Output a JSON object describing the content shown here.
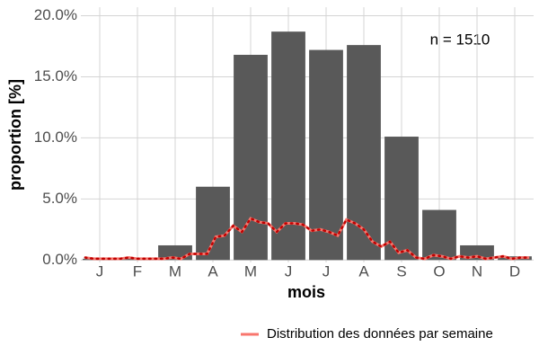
{
  "chart_data": {
    "type": "bar",
    "x_label": "mois",
    "y_label": "proportion [%]",
    "annotation": "n = 1510",
    "categories": [
      "J",
      "F",
      "M",
      "A",
      "M",
      "J",
      "J",
      "A",
      "S",
      "O",
      "N",
      "D"
    ],
    "values": [
      0.1,
      0.2,
      1.2,
      6.0,
      16.8,
      18.7,
      17.2,
      17.6,
      10.1,
      4.1,
      1.2,
      0.3
    ],
    "color": "#595959",
    "ylim": [
      -0.2,
      20.7
    ],
    "yticks": [
      {
        "value": 0,
        "label": "0.0%"
      },
      {
        "value": 5,
        "label": "5.0%"
      },
      {
        "value": 10,
        "label": "10.0%"
      },
      {
        "value": 15,
        "label": "15.0%"
      },
      {
        "value": 20,
        "label": "20.0%"
      }
    ],
    "grid": true,
    "line": {
      "name": "Distribution des données par semaine",
      "color": "#f8766d",
      "dot_color": "#c00000",
      "xlim": [
        0.5,
        52.5
      ],
      "x": [
        1,
        2,
        3,
        4,
        5,
        6,
        7,
        8,
        9,
        10,
        11,
        12,
        13,
        14,
        15,
        16,
        17,
        18,
        19,
        20,
        21,
        22,
        23,
        24,
        25,
        26,
        27,
        28,
        29,
        30,
        31,
        32,
        33,
        34,
        35,
        36,
        37,
        38,
        39,
        40,
        41,
        42,
        43,
        44,
        45,
        46,
        47,
        48,
        49,
        50,
        51,
        52
      ],
      "values": [
        0.2,
        0.1,
        0.1,
        0.1,
        0.1,
        0.2,
        0.1,
        0.1,
        0.1,
        0.1,
        0.2,
        0.1,
        0.5,
        0.5,
        0.5,
        1.9,
        2.0,
        2.8,
        2.3,
        3.4,
        3.1,
        3.0,
        2.3,
        3.0,
        3.0,
        2.9,
        2.4,
        2.5,
        2.3,
        2.0,
        3.3,
        3.0,
        2.5,
        1.5,
        1.1,
        1.5,
        0.6,
        0.8,
        0.2,
        0.1,
        0.4,
        0.3,
        0.1,
        0.3,
        0.2,
        0.3,
        0.1,
        0.2,
        0.3,
        0.1,
        0.2,
        0.2
      ]
    },
    "legend_position": "bottom"
  }
}
